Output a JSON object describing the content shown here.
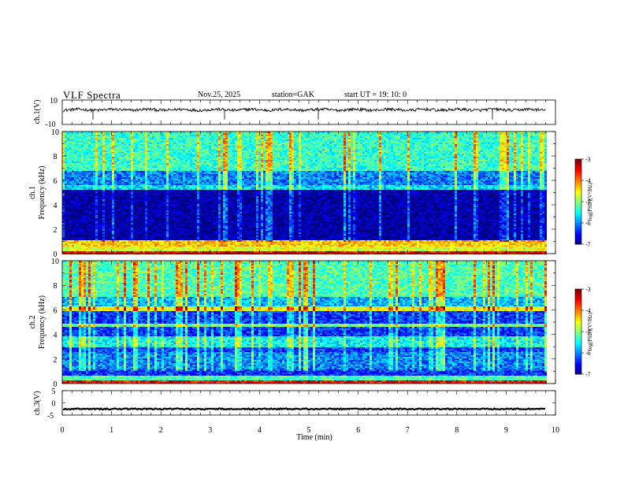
{
  "header": {
    "title": "VLF  Spectra",
    "date": "Nov.25, 2025",
    "station": "station=GAK",
    "start": "start  UT  =    19: 10: 0"
  },
  "chart_data": [
    {
      "type": "line",
      "name": "ch1-waveform",
      "ylabel": "ch.1(V)",
      "ylim": [
        -10,
        10
      ],
      "yticks": [
        "10",
        "-10"
      ],
      "xlim": [
        0,
        10
      ],
      "description_of_signal": "noisy trace near +2 V",
      "mean_value": 2
    },
    {
      "type": "heatmap",
      "name": "ch1-spectrogram",
      "ylabel_line1": "ch.1",
      "ylabel_line2": "Frequency  (kHz)",
      "ylim": [
        0,
        10
      ],
      "yticks": [
        "0",
        "2",
        "4",
        "6",
        "8",
        "10"
      ],
      "xlim": [
        0,
        9.85
      ],
      "colorbar": {
        "label": "log(PSD)(V²/Hz)",
        "range": [
          -7,
          -3
        ],
        "ticks": [
          "-3",
          "-4",
          "-5",
          "-6",
          "-7"
        ]
      }
    },
    {
      "type": "heatmap",
      "name": "ch2-spectrogram",
      "ylabel_line1": "ch.2",
      "ylabel_line2": "Frequency  (kHz)",
      "ylim": [
        0,
        10
      ],
      "yticks": [
        "0",
        "2",
        "4",
        "6",
        "8",
        "10"
      ],
      "xlim": [
        0,
        9.85
      ],
      "colorbar": {
        "label": "log(PSD)(V²/Hz)",
        "range": [
          -7,
          -3
        ],
        "ticks": [
          "-3",
          "-4",
          "-5",
          "-6",
          "-7"
        ]
      }
    },
    {
      "type": "line",
      "name": "ch3-waveform",
      "ylabel": "ch.3(V)",
      "ylim": [
        -5,
        5
      ],
      "yticks": [
        "5",
        "0",
        "-5"
      ],
      "xlim": [
        0,
        10
      ],
      "mean_value": -2.5
    }
  ],
  "xaxis": {
    "label": "Time  (min)",
    "ticks": [
      "0",
      "1",
      "2",
      "3",
      "4",
      "5",
      "6",
      "7",
      "8",
      "9",
      "10"
    ]
  }
}
